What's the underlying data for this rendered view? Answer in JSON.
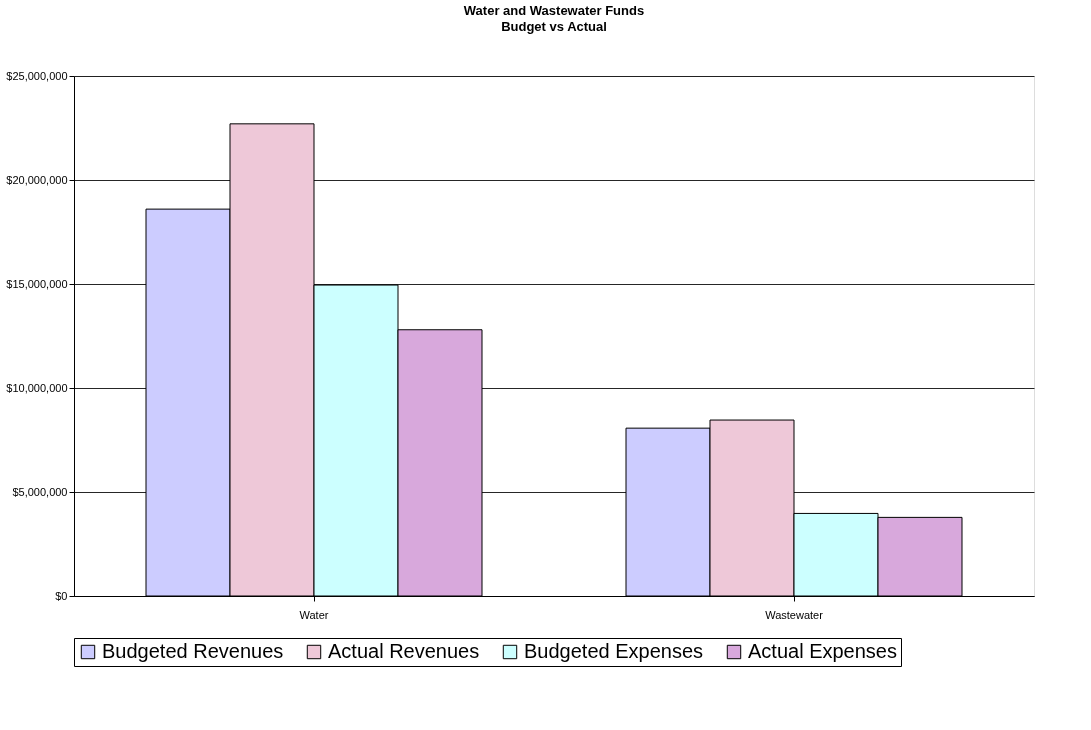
{
  "chart_data": {
    "type": "bar",
    "title": "Water and Wastewater Funds",
    "subtitle": "Budget vs Actual",
    "categories": [
      "Water",
      "Wastewater"
    ],
    "series": [
      {
        "name": "Budgeted Revenues",
        "color": "#ccccff",
        "values": [
          18600000,
          8070000
        ]
      },
      {
        "name": "Actual Revenues",
        "color": "#eec8d8",
        "values": [
          22700000,
          8460000
        ]
      },
      {
        "name": "Budgeted Expenses",
        "color": "#ccffff",
        "values": [
          14950000,
          3970000
        ]
      },
      {
        "name": "Actual Expenses",
        "color": "#d8a8dc",
        "values": [
          12800000,
          3780000
        ]
      }
    ],
    "ylim": [
      0,
      25000000
    ],
    "yticks": [
      {
        "value": 0,
        "label": "$0"
      },
      {
        "value": 5000000,
        "label": "$5,000,000"
      },
      {
        "value": 10000000,
        "label": "$10,000,000"
      },
      {
        "value": 15000000,
        "label": "$15,000,000"
      },
      {
        "value": 20000000,
        "label": "$20,000,000"
      },
      {
        "value": 25000000,
        "label": "$25,000,000"
      }
    ],
    "grid": "y",
    "legend": "bottom"
  }
}
